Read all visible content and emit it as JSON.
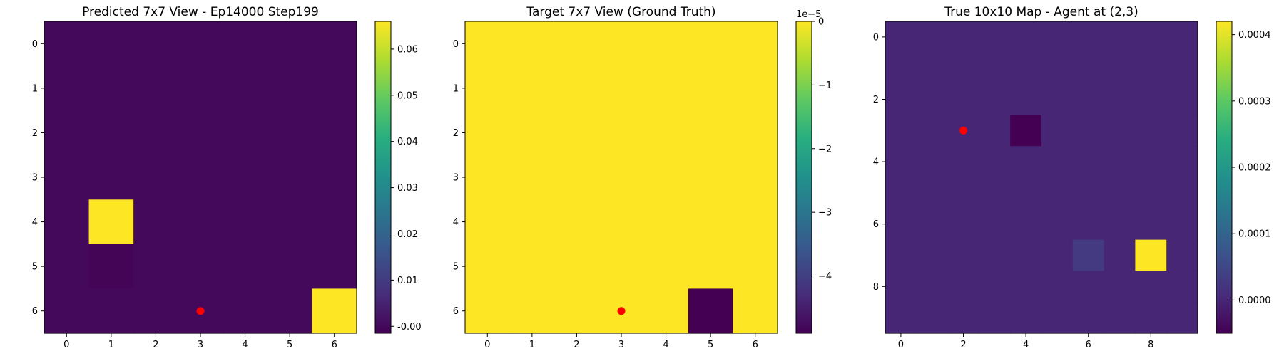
{
  "chart_data": [
    {
      "type": "heatmap",
      "title": "Predicted 7x7 View - Ep14000 Step199",
      "grid_size": 7,
      "x_ticks": [
        0,
        1,
        2,
        3,
        4,
        5,
        6
      ],
      "y_ticks": [
        0,
        1,
        2,
        3,
        4,
        5,
        6
      ],
      "values": [
        [
          0.0,
          0.0,
          0.0,
          0.0,
          0.0,
          0.0,
          0.0
        ],
        [
          0.0,
          0.0,
          0.0,
          0.0,
          0.0,
          0.0,
          0.0
        ],
        [
          0.0,
          0.0,
          0.0,
          0.0,
          0.0,
          0.0,
          0.0
        ],
        [
          0.0,
          0.0,
          0.0,
          0.0,
          0.0,
          0.0,
          0.0
        ],
        [
          0.0,
          0.066,
          0.0,
          0.0,
          0.0,
          0.0,
          0.0
        ],
        [
          0.0,
          -0.0008,
          0.0,
          0.0,
          0.0,
          0.0,
          0.0
        ],
        [
          0.0,
          0.0,
          0.0,
          0.0,
          0.0,
          0.0,
          0.066
        ]
      ],
      "vmin": -0.0015,
      "vmax": 0.066,
      "colormap": "viridis",
      "colorbar_ticks": [
        "-0.00",
        "0.01",
        "0.02",
        "0.03",
        "0.04",
        "0.05",
        "0.06"
      ],
      "colorbar_tick_values": [
        0.0,
        0.01,
        0.02,
        0.03,
        0.04,
        0.05,
        0.06
      ],
      "colorbar_offset": "",
      "agent_marker": {
        "x": 3,
        "y": 6,
        "color": "#ff0000"
      }
    },
    {
      "type": "heatmap",
      "title": "Target 7x7 View (Ground Truth)",
      "grid_size": 7,
      "x_ticks": [
        0,
        1,
        2,
        3,
        4,
        5,
        6
      ],
      "y_ticks": [
        0,
        1,
        2,
        3,
        4,
        5,
        6
      ],
      "values": [
        [
          0,
          0,
          0,
          0,
          0,
          0,
          0
        ],
        [
          0,
          0,
          0,
          0,
          0,
          0,
          0
        ],
        [
          0,
          0,
          0,
          0,
          0,
          0,
          0
        ],
        [
          0,
          0,
          0,
          0,
          0,
          0,
          0
        ],
        [
          0,
          0,
          0,
          0,
          0,
          0,
          0
        ],
        [
          0,
          0,
          0,
          0,
          0,
          0,
          0
        ],
        [
          0,
          0,
          0,
          0,
          0,
          -4.9,
          0
        ]
      ],
      "vmin": -4.9,
      "vmax": 0,
      "colormap": "viridis",
      "colorbar_ticks": [
        "0",
        "−1",
        "−2",
        "−3",
        "−4"
      ],
      "colorbar_tick_values": [
        0,
        -1,
        -2,
        -3,
        -4
      ],
      "colorbar_offset": "1e−5",
      "agent_marker": {
        "x": 3,
        "y": 6,
        "color": "#ff0000"
      }
    },
    {
      "type": "heatmap",
      "title": "True 10x10 Map - Agent at (2,3)",
      "grid_size": 10,
      "x_ticks": [
        0,
        2,
        4,
        6,
        8
      ],
      "y_ticks": [
        0,
        2,
        4,
        6,
        8
      ],
      "values": [
        [
          0,
          0,
          0,
          0,
          0,
          0,
          0,
          0,
          0,
          0
        ],
        [
          0,
          0,
          0,
          0,
          0,
          0,
          0,
          0,
          0,
          0
        ],
        [
          0,
          0,
          0,
          0,
          0,
          0,
          0,
          0,
          0,
          0
        ],
        [
          0,
          0,
          0,
          0,
          -5e-05,
          0,
          0,
          0,
          0,
          0
        ],
        [
          0,
          0,
          0,
          0,
          0,
          0,
          0,
          0,
          0,
          0
        ],
        [
          0,
          0,
          0,
          0,
          0,
          0,
          0,
          0,
          0,
          0
        ],
        [
          0,
          0,
          0,
          0,
          0,
          0,
          0,
          0,
          0,
          0
        ],
        [
          0,
          0,
          0,
          0,
          0,
          0,
          3e-05,
          0,
          0.00042,
          0
        ],
        [
          0,
          0,
          0,
          0,
          0,
          0,
          0,
          0,
          0,
          0
        ],
        [
          0,
          0,
          0,
          0,
          0,
          0,
          0,
          0,
          0,
          0
        ]
      ],
      "vmin": -5e-05,
      "vmax": 0.00042,
      "colormap": "viridis",
      "colorbar_ticks": [
        "0.0000",
        "0.0001",
        "0.0002",
        "0.0003",
        "0.0004"
      ],
      "colorbar_tick_values": [
        0.0,
        0.0001,
        0.0002,
        0.0003,
        0.0004
      ],
      "colorbar_offset": "",
      "agent_marker": {
        "x": 2,
        "y": 3,
        "color": "#ff0000"
      }
    }
  ]
}
